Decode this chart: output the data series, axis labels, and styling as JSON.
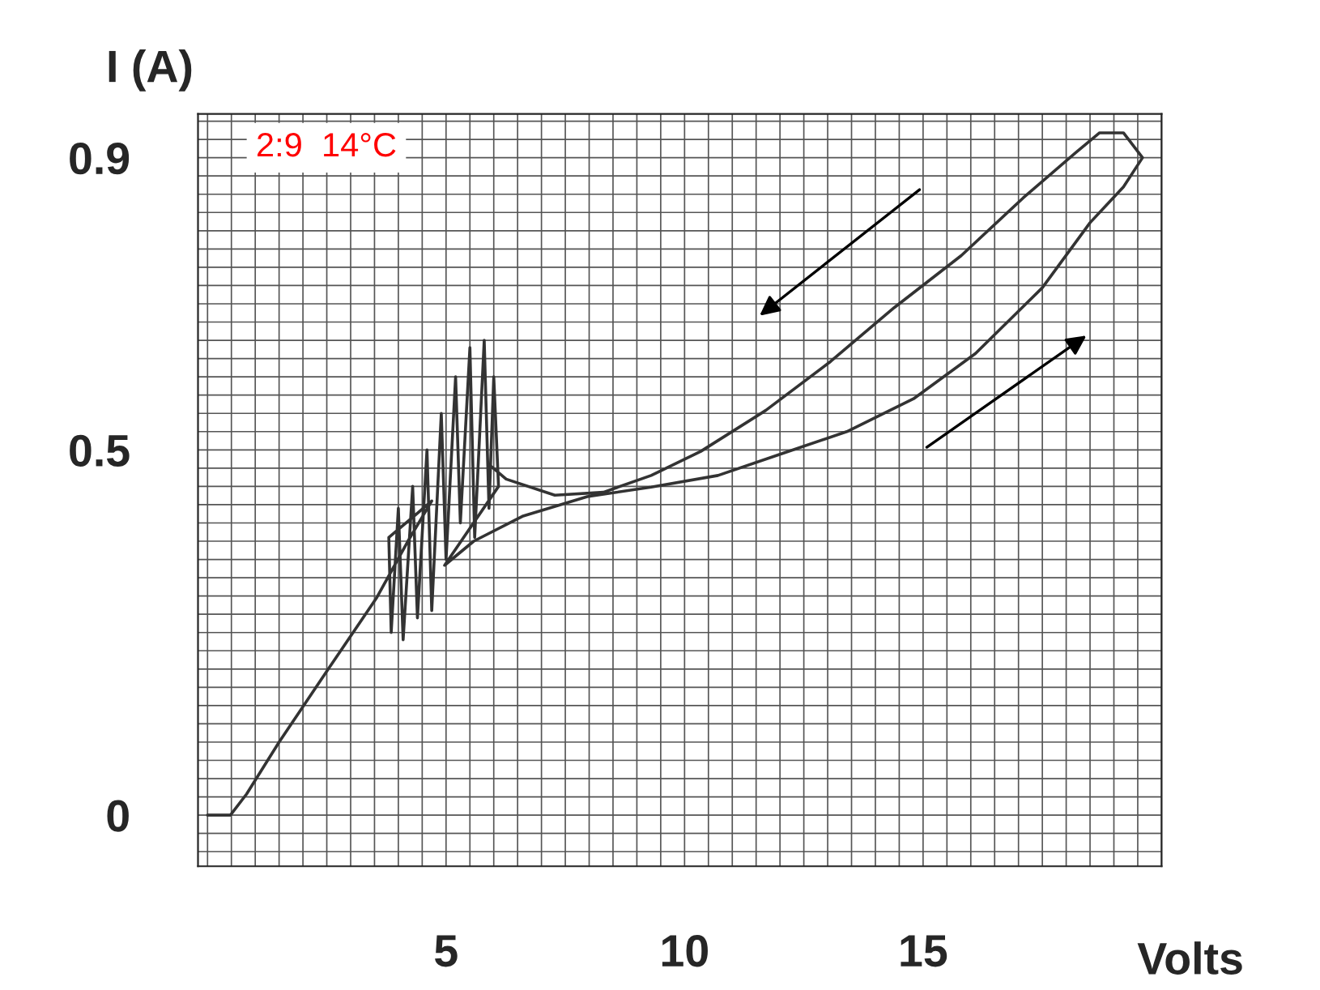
{
  "chart_data": {
    "type": "line",
    "xlabel": "Volts",
    "ylabel": "I (A)",
    "annotations": [
      "2:9  14°C"
    ],
    "series": [
      {
        "color": "#333333",
        "x": [
          0.0,
          0.48,
          0.82,
          1.5,
          2.5,
          3.54,
          4.2,
          4.7,
          3.8,
          3.85,
          4.0,
          4.1,
          4.3,
          4.4,
          4.6,
          4.7,
          4.9,
          5.0,
          5.2,
          5.3,
          5.5,
          5.6,
          5.8,
          5.9,
          6.0,
          6.1,
          4.97,
          5.58,
          6.6,
          7.96,
          9.3,
          10.7,
          12.0,
          13.4,
          14.8,
          16.1,
          17.5,
          18.5,
          19.2,
          19.6,
          19.2,
          18.7,
          18.2,
          17.1,
          15.8,
          14.4,
          13.06,
          11.7,
          10.34,
          9.3,
          8.3,
          7.28,
          6.26,
          5.9
        ],
        "values": [
          0.0,
          0.0,
          0.029,
          0.1,
          0.197,
          0.297,
          0.375,
          0.43,
          0.38,
          0.25,
          0.42,
          0.24,
          0.45,
          0.27,
          0.5,
          0.28,
          0.55,
          0.35,
          0.6,
          0.4,
          0.64,
          0.38,
          0.65,
          0.42,
          0.6,
          0.45,
          0.342,
          0.375,
          0.409,
          0.436,
          0.449,
          0.465,
          0.494,
          0.525,
          0.57,
          0.632,
          0.722,
          0.811,
          0.86,
          0.9,
          0.934,
          0.934,
          0.907,
          0.845,
          0.766,
          0.695,
          0.621,
          0.554,
          0.498,
          0.465,
          0.442,
          0.438,
          0.46,
          0.48
        ]
      }
    ],
    "xlim": [
      -0.2,
      20
    ],
    "ylim": [
      -0.07,
      0.96
    ],
    "xticks": [
      5,
      10,
      15
    ],
    "yticks": [
      0,
      0.5,
      0.9
    ],
    "grid": true,
    "marker": "none",
    "line_style": "solid"
  }
}
